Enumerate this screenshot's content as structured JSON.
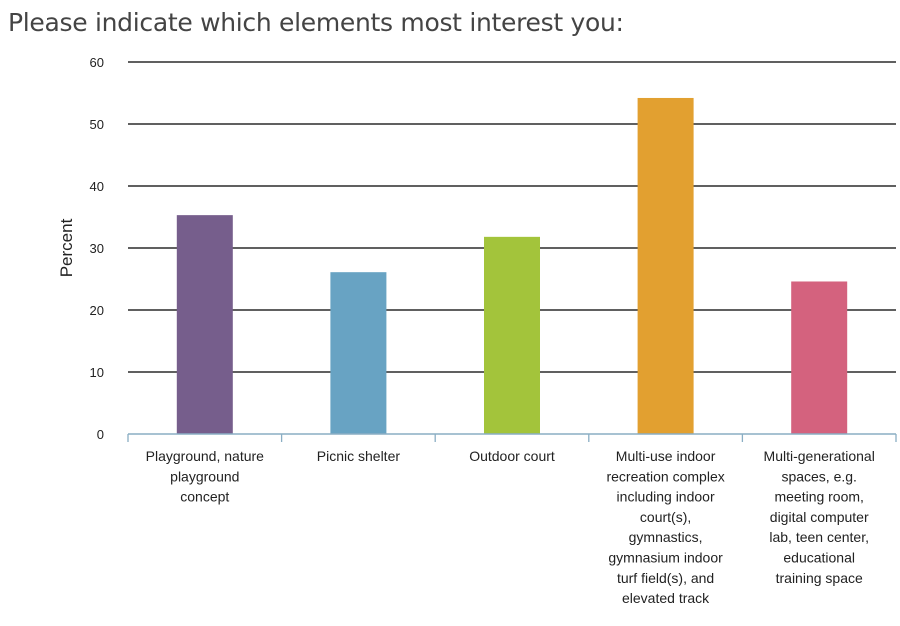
{
  "question": "Please indicate which elements most interest you:",
  "chart_data": {
    "type": "bar",
    "categories": [
      "Playground, nature playground concept",
      "Picnic shelter",
      "Outdoor court",
      "Multi-use indoor recreation complex including indoor court(s), gymnastics, gymnasium indoor turf field(s), and elevated track",
      "Multi-generational spaces, e.g. meeting room, digital computer lab, teen center, educational training space"
    ],
    "category_lines": [
      [
        "Playground, nature",
        "playground",
        "concept"
      ],
      [
        "Picnic shelter"
      ],
      [
        "Outdoor court"
      ],
      [
        "Multi-use indoor",
        "recreation complex",
        "including indoor",
        "court(s),",
        "gymnastics,",
        "gymnasium indoor",
        "turf field(s), and",
        "elevated track"
      ],
      [
        "Multi-generational",
        "spaces, e.g.",
        "meeting room,",
        "digital computer",
        "lab, teen center,",
        "educational",
        "training space"
      ]
    ],
    "values": [
      35.3,
      26.1,
      31.8,
      54.2,
      24.6
    ],
    "colors": [
      "#765e8c",
      "#68a3c3",
      "#a3c43b",
      "#e2a030",
      "#d4627e"
    ],
    "ylabel": "Percent",
    "xlabel": "",
    "ylim": [
      0,
      60
    ],
    "yticks": [
      0,
      10,
      20,
      30,
      40,
      50,
      60
    ],
    "grid": true
  }
}
